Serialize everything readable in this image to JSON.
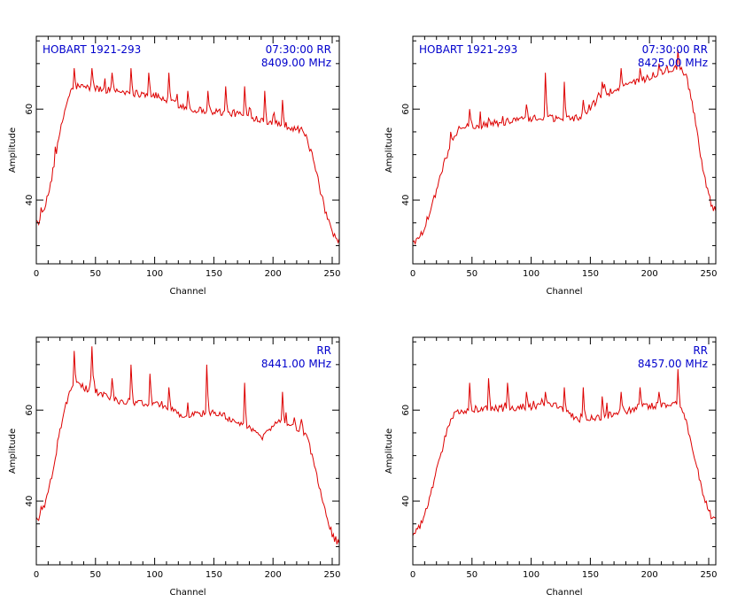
{
  "colors": {
    "trace": "#dd0000",
    "info_text": "#0000cc",
    "axes": "#000000"
  },
  "chart_data": [
    {
      "type": "line",
      "source": "HOBART 1921-293",
      "time": "07:30:00",
      "polarization": "RR",
      "frequency": "8409.00 MHz",
      "xlabel": "Channel",
      "ylabel": "Amplitude",
      "xlim": [
        0,
        256
      ],
      "ylim": [
        26,
        76
      ],
      "xticks": [
        0,
        50,
        100,
        150,
        200,
        250
      ],
      "yticks": [
        40,
        60
      ],
      "shape": {
        "peak_channel": 35,
        "peak": 65,
        "end": 64.5,
        "trend": [
          [
            35,
            65
          ],
          [
            100,
            63
          ],
          [
            130,
            60
          ],
          [
            170,
            59
          ],
          [
            210,
            56.5
          ],
          [
            222,
            55.5
          ]
        ],
        "left_edge": 35,
        "right_edge": 31
      },
      "spikes": [
        [
          32,
          69
        ],
        [
          47,
          69
        ],
        [
          64,
          68
        ],
        [
          80,
          69
        ],
        [
          95,
          68
        ],
        [
          112,
          68
        ],
        [
          128,
          64
        ],
        [
          145,
          64
        ],
        [
          160,
          65
        ],
        [
          176,
          65
        ],
        [
          193,
          64
        ],
        [
          208,
          62
        ],
        [
          224,
          56
        ]
      ]
    },
    {
      "type": "line",
      "source": "HOBART 1921-293",
      "time": "07:30:00",
      "polarization": "RR",
      "frequency": "8425.00 MHz",
      "xlabel": "Channel",
      "ylabel": "Amplitude",
      "xlim": [
        0,
        256
      ],
      "ylim": [
        26,
        76
      ],
      "xticks": [
        0,
        50,
        100,
        150,
        200,
        250
      ],
      "yticks": [
        40,
        60
      ],
      "shape": {
        "peak_channel": 45,
        "peak": 56,
        "end": 56.5,
        "trend": [
          [
            45,
            56
          ],
          [
            100,
            58
          ],
          [
            140,
            58
          ],
          [
            160,
            63
          ],
          [
            180,
            65
          ],
          [
            200,
            67
          ],
          [
            218,
            69
          ],
          [
            226,
            69
          ]
        ],
        "left_edge": 31,
        "right_edge": 38
      },
      "spikes": [
        [
          32,
          55
        ],
        [
          48,
          60
        ],
        [
          64,
          58
        ],
        [
          80,
          58
        ],
        [
          96,
          61
        ],
        [
          112,
          68
        ],
        [
          128,
          66
        ],
        [
          144,
          62
        ],
        [
          160,
          66
        ],
        [
          176,
          69
        ],
        [
          192,
          69
        ],
        [
          208,
          70
        ],
        [
          224,
          73
        ]
      ]
    },
    {
      "type": "line",
      "source": "",
      "time": "",
      "polarization": "RR",
      "frequency": "8441.00 MHz",
      "xlabel": "Channel",
      "ylabel": "Amplitude",
      "xlim": [
        0,
        256
      ],
      "ylim": [
        26,
        76
      ],
      "xticks": [
        0,
        50,
        100,
        150,
        200,
        250
      ],
      "yticks": [
        40,
        60
      ],
      "shape": {
        "peak_channel": 35,
        "peak": 65.5,
        "end": 65,
        "trend": [
          [
            35,
            65.5
          ],
          [
            70,
            62
          ],
          [
            110,
            61
          ],
          [
            120,
            59
          ],
          [
            150,
            59.5
          ],
          [
            175,
            57
          ],
          [
            190,
            54
          ],
          [
            205,
            57.5
          ],
          [
            222,
            56
          ]
        ],
        "left_edge": 36,
        "right_edge": 31
      },
      "spikes": [
        [
          32,
          73
        ],
        [
          47,
          74
        ],
        [
          64,
          67
        ],
        [
          80,
          70
        ],
        [
          96,
          68
        ],
        [
          112,
          65
        ],
        [
          144,
          70
        ],
        [
          176,
          66
        ],
        [
          208,
          64
        ],
        [
          224,
          58
        ]
      ]
    },
    {
      "type": "line",
      "source": "",
      "time": "",
      "polarization": "RR",
      "frequency": "8457.00 MHz",
      "xlabel": "Channel",
      "ylabel": "Amplitude",
      "xlim": [
        0,
        256
      ],
      "ylim": [
        26,
        76
      ],
      "xticks": [
        0,
        50,
        100,
        150,
        200,
        250
      ],
      "yticks": [
        40,
        60
      ],
      "shape": {
        "peak_channel": 42,
        "peak": 60,
        "end": 60.5,
        "trend": [
          [
            42,
            60
          ],
          [
            120,
            61
          ],
          [
            140,
            58
          ],
          [
            160,
            58.5
          ],
          [
            190,
            60.5
          ],
          [
            222,
            61.5
          ]
        ],
        "left_edge": 33,
        "right_edge": 36
      },
      "spikes": [
        [
          32,
          58
        ],
        [
          48,
          66
        ],
        [
          64,
          67
        ],
        [
          80,
          66
        ],
        [
          96,
          64
        ],
        [
          112,
          64
        ],
        [
          128,
          65
        ],
        [
          144,
          65
        ],
        [
          160,
          63
        ],
        [
          176,
          64
        ],
        [
          192,
          65
        ],
        [
          208,
          64
        ],
        [
          224,
          69
        ]
      ]
    }
  ]
}
